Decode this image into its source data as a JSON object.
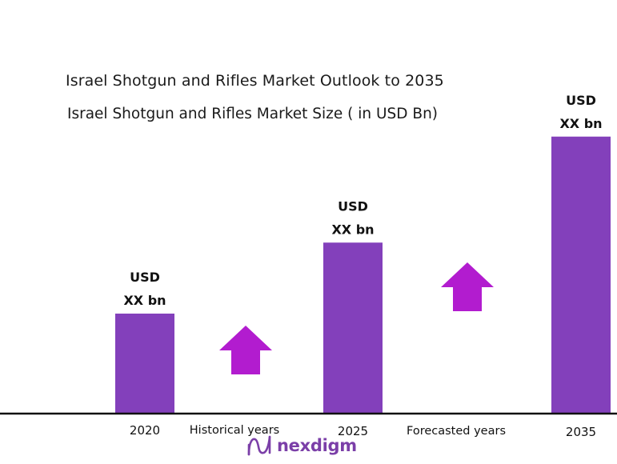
{
  "chart_data": {
    "type": "bar",
    "title": "Israel Shotgun and Rifles Market Outlook to 2035",
    "subtitle": "Israel Shotgun and Rifles Market Size  ( in USD Bn)",
    "categories": [
      "2020",
      "2025",
      "2035"
    ],
    "relative_values": [
      1.0,
      1.71,
      2.77
    ],
    "data_labels": [
      {
        "line1": "USD",
        "line2": "XX bn"
      },
      {
        "line1": "USD",
        "line2": "XX bn"
      },
      {
        "line1": "USD",
        "line2": "XX bn"
      }
    ],
    "period_labels": [
      "Historical years",
      "Forecasted years"
    ],
    "bar_color": "#8340bb",
    "arrow_color": "#b21ccf",
    "axis_color": "#111111",
    "grid": false,
    "legend": "none"
  },
  "brand": {
    "name": "nexdigm",
    "color": "#7b3fa8"
  }
}
